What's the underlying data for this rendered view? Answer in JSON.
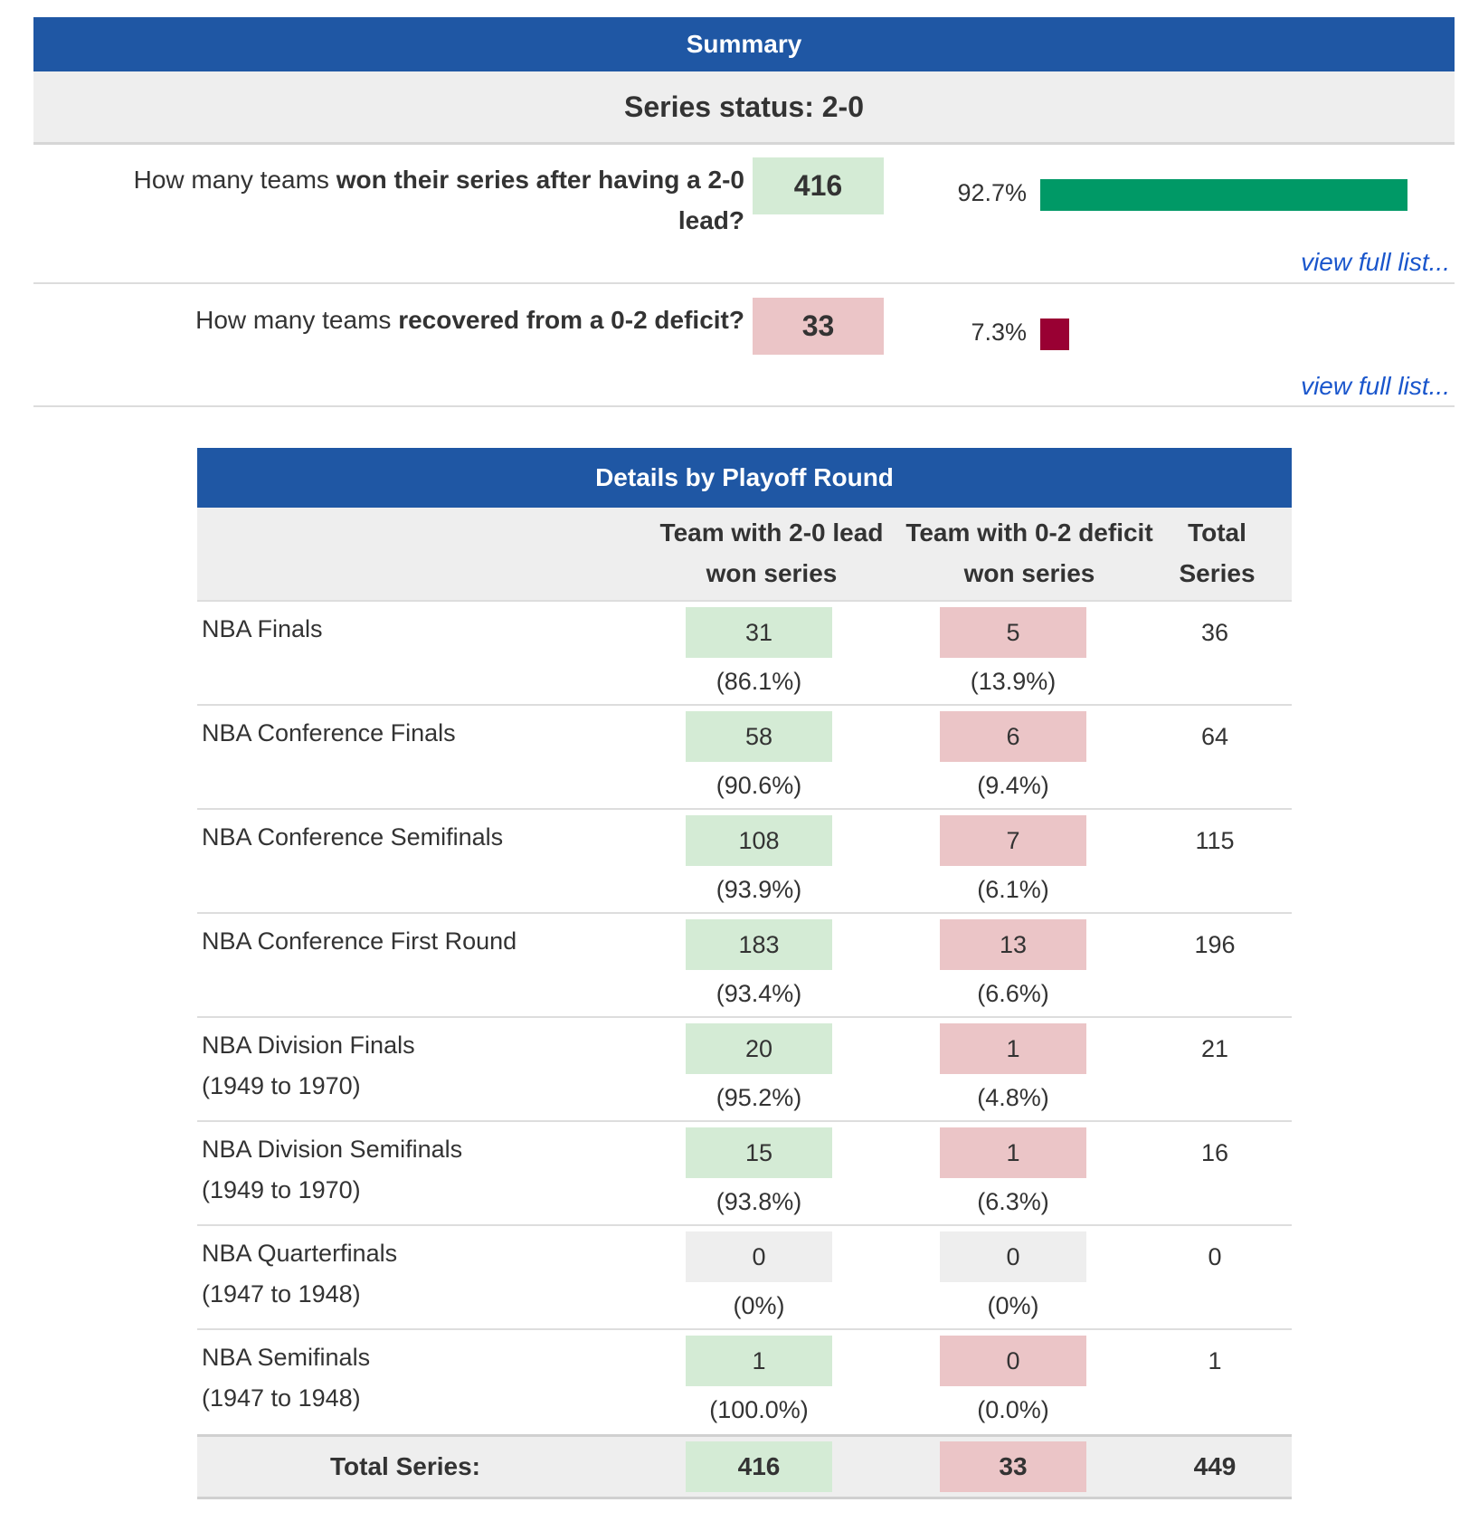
{
  "summary": {
    "title": "Summary",
    "series_status": "Series status: 2-0",
    "questions": [
      {
        "prefix": "How many teams ",
        "bold": "won their series after having a 2-0 lead?",
        "count": "416",
        "percent_label": "92.7%",
        "percent": 92.7,
        "color": "#009966",
        "link": "view full list..."
      },
      {
        "prefix": "How many teams ",
        "bold": "recovered from a 0-2 deficit?",
        "count": "33",
        "percent_label": "7.3%",
        "percent": 7.3,
        "color": "#990033",
        "link": "view full list..."
      }
    ]
  },
  "details": {
    "title": "Details by Playoff Round",
    "headers": [
      "Team with 2-0 lead won series",
      "Team with 0-2 deficit won series",
      "Total Series"
    ],
    "rows": [
      {
        "round": "NBA Finals",
        "years": "",
        "won": "31",
        "won_pct": "(86.1%)",
        "lost": "5",
        "lost_pct": "(13.9%)",
        "total": "36"
      },
      {
        "round": "NBA Conference Finals",
        "years": "",
        "won": "58",
        "won_pct": "(90.6%)",
        "lost": "6",
        "lost_pct": "(9.4%)",
        "total": "64"
      },
      {
        "round": "NBA Conference Semifinals",
        "years": "",
        "won": "108",
        "won_pct": "(93.9%)",
        "lost": "7",
        "lost_pct": "(6.1%)",
        "total": "115"
      },
      {
        "round": "NBA Conference First Round",
        "years": "",
        "won": "183",
        "won_pct": "(93.4%)",
        "lost": "13",
        "lost_pct": "(6.6%)",
        "total": "196"
      },
      {
        "round": "NBA Division Finals",
        "years": "(1949 to 1970)",
        "won": "20",
        "won_pct": "(95.2%)",
        "lost": "1",
        "lost_pct": "(4.8%)",
        "total": "21"
      },
      {
        "round": "NBA Division Semifinals",
        "years": "(1949 to 1970)",
        "won": "15",
        "won_pct": "(93.8%)",
        "lost": "1",
        "lost_pct": "(6.3%)",
        "total": "16"
      },
      {
        "round": "NBA Quarterfinals",
        "years": "(1947 to 1948)",
        "won": "0",
        "won_pct": "(0%)",
        "lost": "0",
        "lost_pct": "(0%)",
        "total": "0"
      },
      {
        "round": "NBA Semifinals",
        "years": "(1947 to 1948)",
        "won": "1",
        "won_pct": "(100.0%)",
        "lost": "0",
        "lost_pct": "(0.0%)",
        "total": "1"
      }
    ],
    "totals": {
      "label": "Total Series:",
      "won": "416",
      "lost": "33",
      "total": "449"
    }
  },
  "colors": {
    "header": "#1f57a4",
    "good_bg": "#d4ebd5",
    "bad_bg": "#ebc5c7",
    "link": "#1a56cc"
  }
}
